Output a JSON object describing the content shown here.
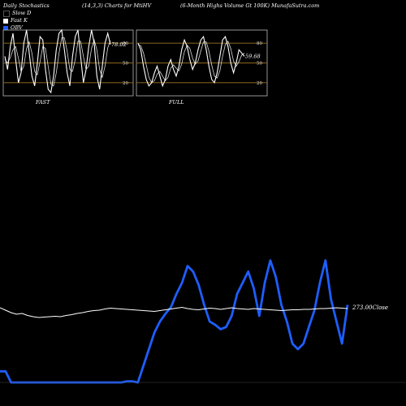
{
  "header": {
    "left": "Daily Stochastics",
    "middle": "(14,3,3) Charts for MtiHV",
    "right": "(6-Month Highs Volume   Gt 100K) MunafaSutra.com"
  },
  "legend": [
    {
      "label": "Slow  D",
      "color": "#000000"
    },
    {
      "label": "Fast K",
      "color": "#ffffff"
    },
    {
      "label": "OBV",
      "color": "#1e5eff"
    }
  ],
  "chart_data": [
    {
      "type": "line",
      "name": "fast-stochastic",
      "xlabel": "FAST",
      "ylim": [
        0,
        100
      ],
      "levels": [
        20,
        50,
        80
      ],
      "level_labels": [
        "20",
        "50",
        "80"
      ],
      "value_label": "78.02",
      "series": [
        {
          "name": "Fast K",
          "color": "#ffffff",
          "values": [
            60,
            40,
            75,
            95,
            55,
            20,
            35,
            80,
            100,
            65,
            30,
            15,
            50,
            90,
            85,
            40,
            10,
            5,
            30,
            70,
            95,
            100,
            70,
            35,
            15,
            60,
            90,
            100,
            60,
            20,
            40,
            75,
            100,
            80,
            30,
            10,
            45,
            80,
            95,
            78
          ]
        },
        {
          "name": "Slow D",
          "color": "#ffffff",
          "values": [
            55,
            50,
            58,
            70,
            75,
            57,
            37,
            45,
            72,
            82,
            65,
            37,
            32,
            52,
            75,
            72,
            45,
            18,
            15,
            35,
            65,
            88,
            88,
            68,
            40,
            37,
            55,
            83,
            83,
            60,
            40,
            45,
            72,
            85,
            70,
            40,
            28,
            45,
            73,
            84
          ]
        }
      ]
    },
    {
      "type": "line",
      "name": "full-stochastic",
      "xlabel": "FULL",
      "ylim": [
        0,
        100
      ],
      "levels": [
        20,
        50,
        80
      ],
      "level_labels": [
        "20",
        "50",
        "80"
      ],
      "value_label": "59.68",
      "series": [
        {
          "name": "Fast K",
          "color": "#ffffff",
          "values": [
            80,
            70,
            45,
            25,
            15,
            20,
            35,
            45,
            30,
            15,
            25,
            45,
            55,
            40,
            30,
            45,
            70,
            85,
            75,
            55,
            40,
            50,
            70,
            85,
            90,
            70,
            45,
            25,
            20,
            35,
            60,
            85,
            90,
            75,
            50,
            35,
            50,
            70,
            65,
            60
          ]
        },
        {
          "name": "Slow D",
          "color": "#ffffff",
          "values": [
            78,
            76,
            65,
            47,
            28,
            20,
            23,
            33,
            37,
            30,
            23,
            28,
            42,
            47,
            42,
            38,
            48,
            67,
            77,
            72,
            57,
            48,
            53,
            68,
            82,
            82,
            68,
            47,
            30,
            27,
            38,
            60,
            78,
            83,
            72,
            53,
            45,
            52,
            62,
            65
          ]
        }
      ]
    },
    {
      "type": "line",
      "name": "obv-and-close",
      "value_label": "273.00",
      "value_label_suffix": "Close",
      "series": [
        {
          "name": "OBV",
          "color": "#1e5eff",
          "values": [
            10,
            10,
            0,
            0,
            0,
            0,
            0,
            0,
            0,
            0,
            0,
            0,
            0,
            0,
            0,
            0,
            0,
            0,
            0,
            0,
            0,
            0,
            0,
            1,
            1,
            0,
            15,
            30,
            45,
            55,
            62,
            68,
            80,
            90,
            105,
            100,
            88,
            70,
            55,
            52,
            48,
            50,
            60,
            80,
            90,
            100,
            85,
            60,
            90,
            110,
            95,
            70,
            55,
            35,
            30,
            35,
            50,
            65,
            90,
            110,
            75,
            55,
            35,
            70
          ]
        },
        {
          "name": "Close",
          "color": "#ffffff",
          "values": [
            273.2,
            272.6,
            272.0,
            271.6,
            271.8,
            271.3,
            271.0,
            270.8,
            270.9,
            271.0,
            271.1,
            271.0,
            271.3,
            271.5,
            271.8,
            272.0,
            272.3,
            272.5,
            272.6,
            272.9,
            273.1,
            273.0,
            272.9,
            272.8,
            272.7,
            272.6,
            272.5,
            272.4,
            272.3,
            272.5,
            272.7,
            272.9,
            273.1,
            273.3,
            273.0,
            272.8,
            272.7,
            272.9,
            273.1,
            273.0,
            272.8,
            273.0,
            273.2,
            273.0,
            272.9,
            272.8,
            273.0,
            272.9,
            272.8,
            272.7,
            272.6,
            272.5,
            272.6,
            272.7,
            272.7,
            272.8,
            272.8,
            272.9,
            273.0,
            273.0,
            273.1,
            273.2,
            273.1,
            273.0
          ]
        }
      ]
    }
  ]
}
